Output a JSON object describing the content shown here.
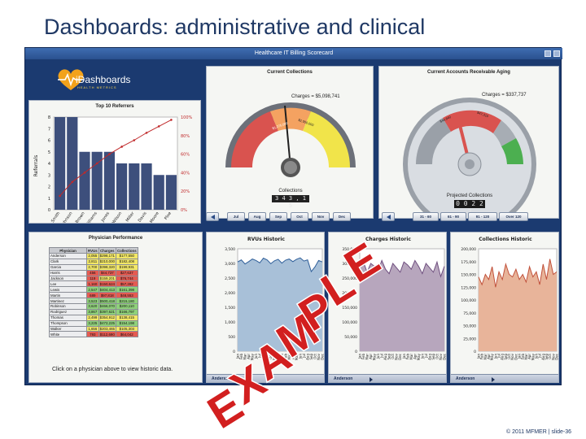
{
  "slide": {
    "title": "Dashboards: administrative and clinical",
    "footer": "© 2011 MFMER | slide-36"
  },
  "window": {
    "title": "Healthcare IT Billing Scorecard"
  },
  "logo": {
    "text": "iDashboards",
    "subtitle": "HEALTH METRICS"
  },
  "watermark": "EXAMPLE",
  "colors": {
    "navy": "#1b3a70",
    "pareto_bar": "#3d4f7c",
    "pareto_line": "#c0292a",
    "rvu_area": "#a8c0d8",
    "charges_area": "#b7a6bd",
    "collections_area": "#e8b49a",
    "green": "#5cb85c",
    "yellow": "#f1e44a",
    "red": "#d9534f"
  },
  "referrers": {
    "title": "Top 10 Referrers",
    "ylabel": "Referrals",
    "right_ticks": [
      "100%",
      "80%",
      "60%",
      "40%",
      "20%",
      "0%"
    ],
    "left_ticks": [
      "8",
      "7",
      "6",
      "5",
      "4",
      "3",
      "2",
      "1",
      "0"
    ]
  },
  "current_collections": {
    "title": "Current Collections",
    "charges": "Charges = $5,098,741",
    "collections_label": "Collections",
    "collections_value": "3 4 3 , 1 5",
    "months": [
      "Jul",
      "Aug",
      "Sep",
      "Oct",
      "Nov",
      "Dec"
    ],
    "dial_ticks": [
      "$1,275,000",
      "$2,550,000"
    ]
  },
  "ar_aging": {
    "title": "Current Accounts Receivable Aging",
    "charges": "Charges = $337,737",
    "projected_label": "Projected Collections",
    "projected_value": "0 0 2 2 2",
    "dial_ticks": [
      "$46,840",
      "$47,310"
    ],
    "buckets": [
      "31 - 60",
      "61 - 90",
      "91 - 120",
      "Over 120"
    ]
  },
  "physician_performance": {
    "title": "Physician Performance",
    "columns": [
      "Physician",
      "RVUs",
      "Charges",
      "Collections"
    ],
    "rows": [
      {
        "name": "Anderson",
        "rvus": "2,055",
        "charges": "$298,171",
        "collections": "$177,550",
        "c1": "#f3e867",
        "c2": "#f3e867",
        "c3": "#f3e867"
      },
      {
        "name": "Clark",
        "rvus": "2,811",
        "charges": "$210,000",
        "collections": "$182,408",
        "c1": "#f3e867",
        "c2": "#f3e867",
        "c3": "#f3e867"
      },
      {
        "name": "Garcia",
        "rvus": "2,700",
        "charges": "$398,320",
        "collections": "$199,931",
        "c1": "#f3e867",
        "c2": "#f3e867",
        "c3": "#f3e867"
      },
      {
        "name": "Harris",
        "rvus": "456",
        "charges": "$44,737",
        "collections": "$27,637",
        "c1": "#e45b52",
        "c2": "#e45b52",
        "c3": "#e45b52"
      },
      {
        "name": "Jackson",
        "rvus": "119",
        "charges": "$159,201",
        "collections": "$76,744",
        "c1": "#e45b52",
        "c2": "#f3e867",
        "c3": "#e45b52"
      },
      {
        "name": "Lee",
        "rvus": "1,160",
        "charges": "$150,624",
        "collections": "$57,282",
        "c1": "#e45b52",
        "c2": "#e45b52",
        "c3": "#e45b52"
      },
      {
        "name": "Lewis",
        "rvus": "2,547",
        "charges": "$404,413",
        "collections": "$161,398",
        "c1": "#8fd17a",
        "c2": "#8fd17a",
        "c3": "#8fd17a"
      },
      {
        "name": "Martin",
        "rvus": "689",
        "charges": "$97,818",
        "collections": "$48,553",
        "c1": "#e45b52",
        "c2": "#e45b52",
        "c3": "#e45b52"
      },
      {
        "name": "Martinez",
        "rvus": "3,523",
        "charges": "$500,418",
        "collections": "$215,180",
        "c1": "#8fd17a",
        "c2": "#8fd17a",
        "c3": "#8fd17a"
      },
      {
        "name": "Robinson",
        "rvus": "3,620",
        "charges": "$466,070",
        "collections": "$200,110",
        "c1": "#8fd17a",
        "c2": "#8fd17a",
        "c3": "#8fd17a"
      },
      {
        "name": "Rodriguez",
        "rvus": "3,867",
        "charges": "$397,621",
        "collections": "$166,797",
        "c1": "#8fd17a",
        "c2": "#8fd17a",
        "c3": "#8fd17a"
      },
      {
        "name": "Thomas",
        "rvus": "2,499",
        "charges": "$354,912",
        "collections": "$138,415",
        "c1": "#f3e867",
        "c2": "#f3e867",
        "c3": "#f3e867"
      },
      {
        "name": "Thompson",
        "rvus": "3,225",
        "charges": "$472,225",
        "collections": "$154,198",
        "c1": "#8fd17a",
        "c2": "#8fd17a",
        "c3": "#8fd17a"
      },
      {
        "name": "Walker",
        "rvus": "1,656",
        "charges": "$203,465",
        "collections": "$105,303",
        "c1": "#f3e867",
        "c2": "#f3e867",
        "c3": "#f3e867"
      },
      {
        "name": "White",
        "rvus": "793",
        "charges": "$112,690",
        "collections": "$64,042",
        "c1": "#e45b52",
        "c2": "#e45b52",
        "c3": "#e45b52"
      }
    ],
    "instruction": "Click on a physician above to view historic data."
  },
  "history_footer": {
    "physician": "Anderson"
  },
  "chart_data": [
    {
      "type": "bar",
      "title": "Top 10 Referrers",
      "ylabel": "Referrals",
      "categories": [
        "Smith",
        "Johnson",
        "Brown",
        "Williams",
        "Jones",
        "Wilson",
        "Miller",
        "Davis",
        "Moore",
        "Ploe"
      ],
      "series": [
        {
          "values": [
            8,
            8,
            5,
            5,
            5,
            4,
            4,
            4,
            3,
            3
          ]
        },
        {
          "values": [
            15,
            30,
            40,
            50,
            60,
            68,
            75,
            83,
            90,
            97
          ]
        }
      ],
      "ylim": [
        0,
        8
      ]
    },
    {
      "type": "area",
      "title": "RVUs Historic",
      "categories": [
        "Jan",
        "Feb",
        "Mar",
        "Apr",
        "May",
        "Jun",
        "Jul",
        "Aug",
        "Sep",
        "Oct",
        "Nov",
        "Dec",
        "Jan",
        "Feb",
        "Mar",
        "Apr",
        "May",
        "Jun",
        "Jul",
        "Aug",
        "Sep",
        "Oct",
        "Nov",
        "Dec"
      ],
      "values": [
        3050,
        3120,
        2980,
        3060,
        3150,
        3100,
        3020,
        3180,
        3120,
        2990,
        3090,
        3140,
        3010,
        3110,
        3150,
        3060,
        3140,
        3190,
        3080,
        3120,
        2720,
        2880,
        3100,
        3050
      ],
      "yticks": [
        "3,500",
        "3,000",
        "2,500",
        "2,000",
        "1,500",
        "1,000",
        "500",
        "0"
      ],
      "ylim": [
        0,
        3500
      ]
    },
    {
      "type": "area",
      "title": "Charges Historic",
      "categories": [
        "Jan",
        "Feb",
        "Mar",
        "Apr",
        "May",
        "Jun",
        "Jul",
        "Aug",
        "Sep",
        "Oct",
        "Nov",
        "Dec",
        "Jan",
        "Feb",
        "Mar",
        "Apr",
        "May",
        "Jun",
        "Jul",
        "Aug",
        "Sep",
        "Oct",
        "Nov",
        "Dec"
      ],
      "values": [
        285000,
        305000,
        270000,
        300000,
        290000,
        275000,
        310000,
        280000,
        265000,
        300000,
        285000,
        270000,
        305000,
        295000,
        280000,
        310000,
        290000,
        265000,
        300000,
        285000,
        270000,
        305000,
        255000,
        290000
      ],
      "yticks": [
        "350,000",
        "300,000",
        "250,000",
        "200,000",
        "150,000",
        "100,000",
        "50,000",
        "0"
      ],
      "ylim": [
        0,
        350000
      ]
    },
    {
      "type": "area",
      "title": "Collections Historic",
      "categories": [
        "Jan",
        "Feb",
        "Mar",
        "Apr",
        "May",
        "Jun",
        "Jul",
        "Aug",
        "Sep",
        "Oct",
        "Nov",
        "Dec",
        "Jan",
        "Feb",
        "Mar",
        "Apr",
        "May",
        "Jun",
        "Jul",
        "Aug",
        "Sep",
        "Oct",
        "Nov",
        "Dec"
      ],
      "values": [
        145000,
        130000,
        150000,
        140000,
        165000,
        125000,
        155000,
        140000,
        170000,
        150000,
        145000,
        160000,
        140000,
        150000,
        135000,
        165000,
        145000,
        155000,
        130000,
        170000,
        140000,
        180000,
        150000,
        155000
      ],
      "yticks": [
        "200,000",
        "175,000",
        "150,000",
        "125,000",
        "100,000",
        "75,000",
        "50,000",
        "25,000",
        "0"
      ],
      "ylim": [
        0,
        200000
      ]
    }
  ]
}
